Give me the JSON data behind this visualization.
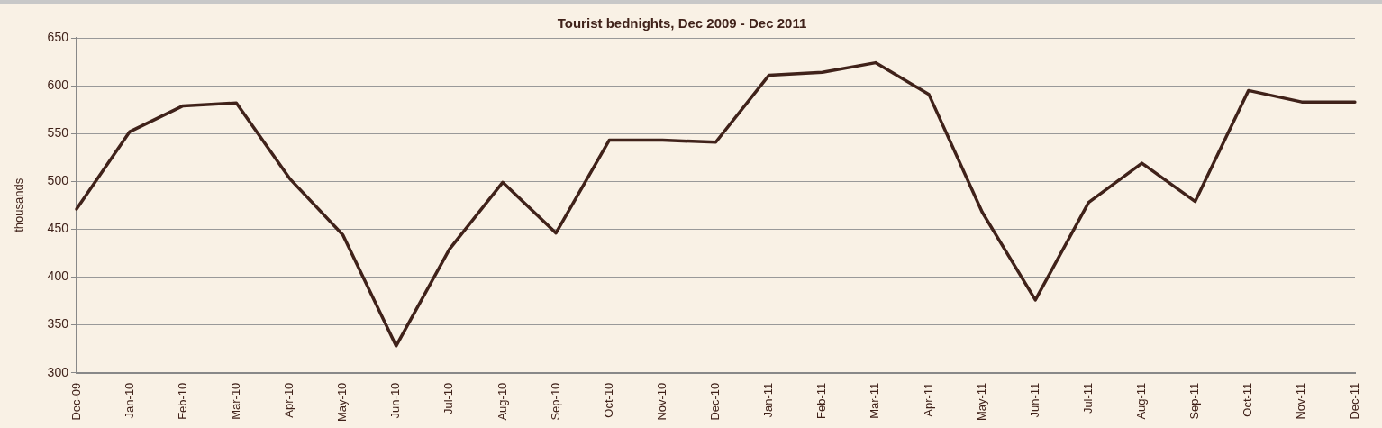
{
  "chart_data": {
    "type": "line",
    "title": "Tourist bednights, Dec 2009 - Dec 2011",
    "ylabel": "thousands",
    "categories": [
      "Dec-09",
      "Jan-10",
      "Feb-10",
      "Mar-10",
      "Apr-10",
      "May-10",
      "Jun-10",
      "Jul-10",
      "Aug-10",
      "Sep-10",
      "Oct-10",
      "Nov-10",
      "Dec-10",
      "Jan-11",
      "Feb-11",
      "Mar-11",
      "Apr-11",
      "May-11",
      "Jun-11",
      "Jul-11",
      "Aug-11",
      "Sep-11",
      "Oct-11",
      "Nov-11",
      "Dec-11"
    ],
    "series": [
      {
        "color": "#40221a",
        "values": [
          471,
          552,
          579,
          582,
          503,
          444,
          328,
          429,
          499,
          446,
          543,
          543,
          541,
          611,
          614,
          624,
          591,
          468,
          376,
          478,
          519,
          479,
          595,
          583,
          583
        ]
      }
    ],
    "ylim": [
      300,
      650
    ],
    "yticks": [
      300,
      350,
      400,
      450,
      500,
      550,
      600,
      650
    ],
    "grid": "y",
    "legend": false,
    "marker": "none",
    "line_style": "solid"
  }
}
